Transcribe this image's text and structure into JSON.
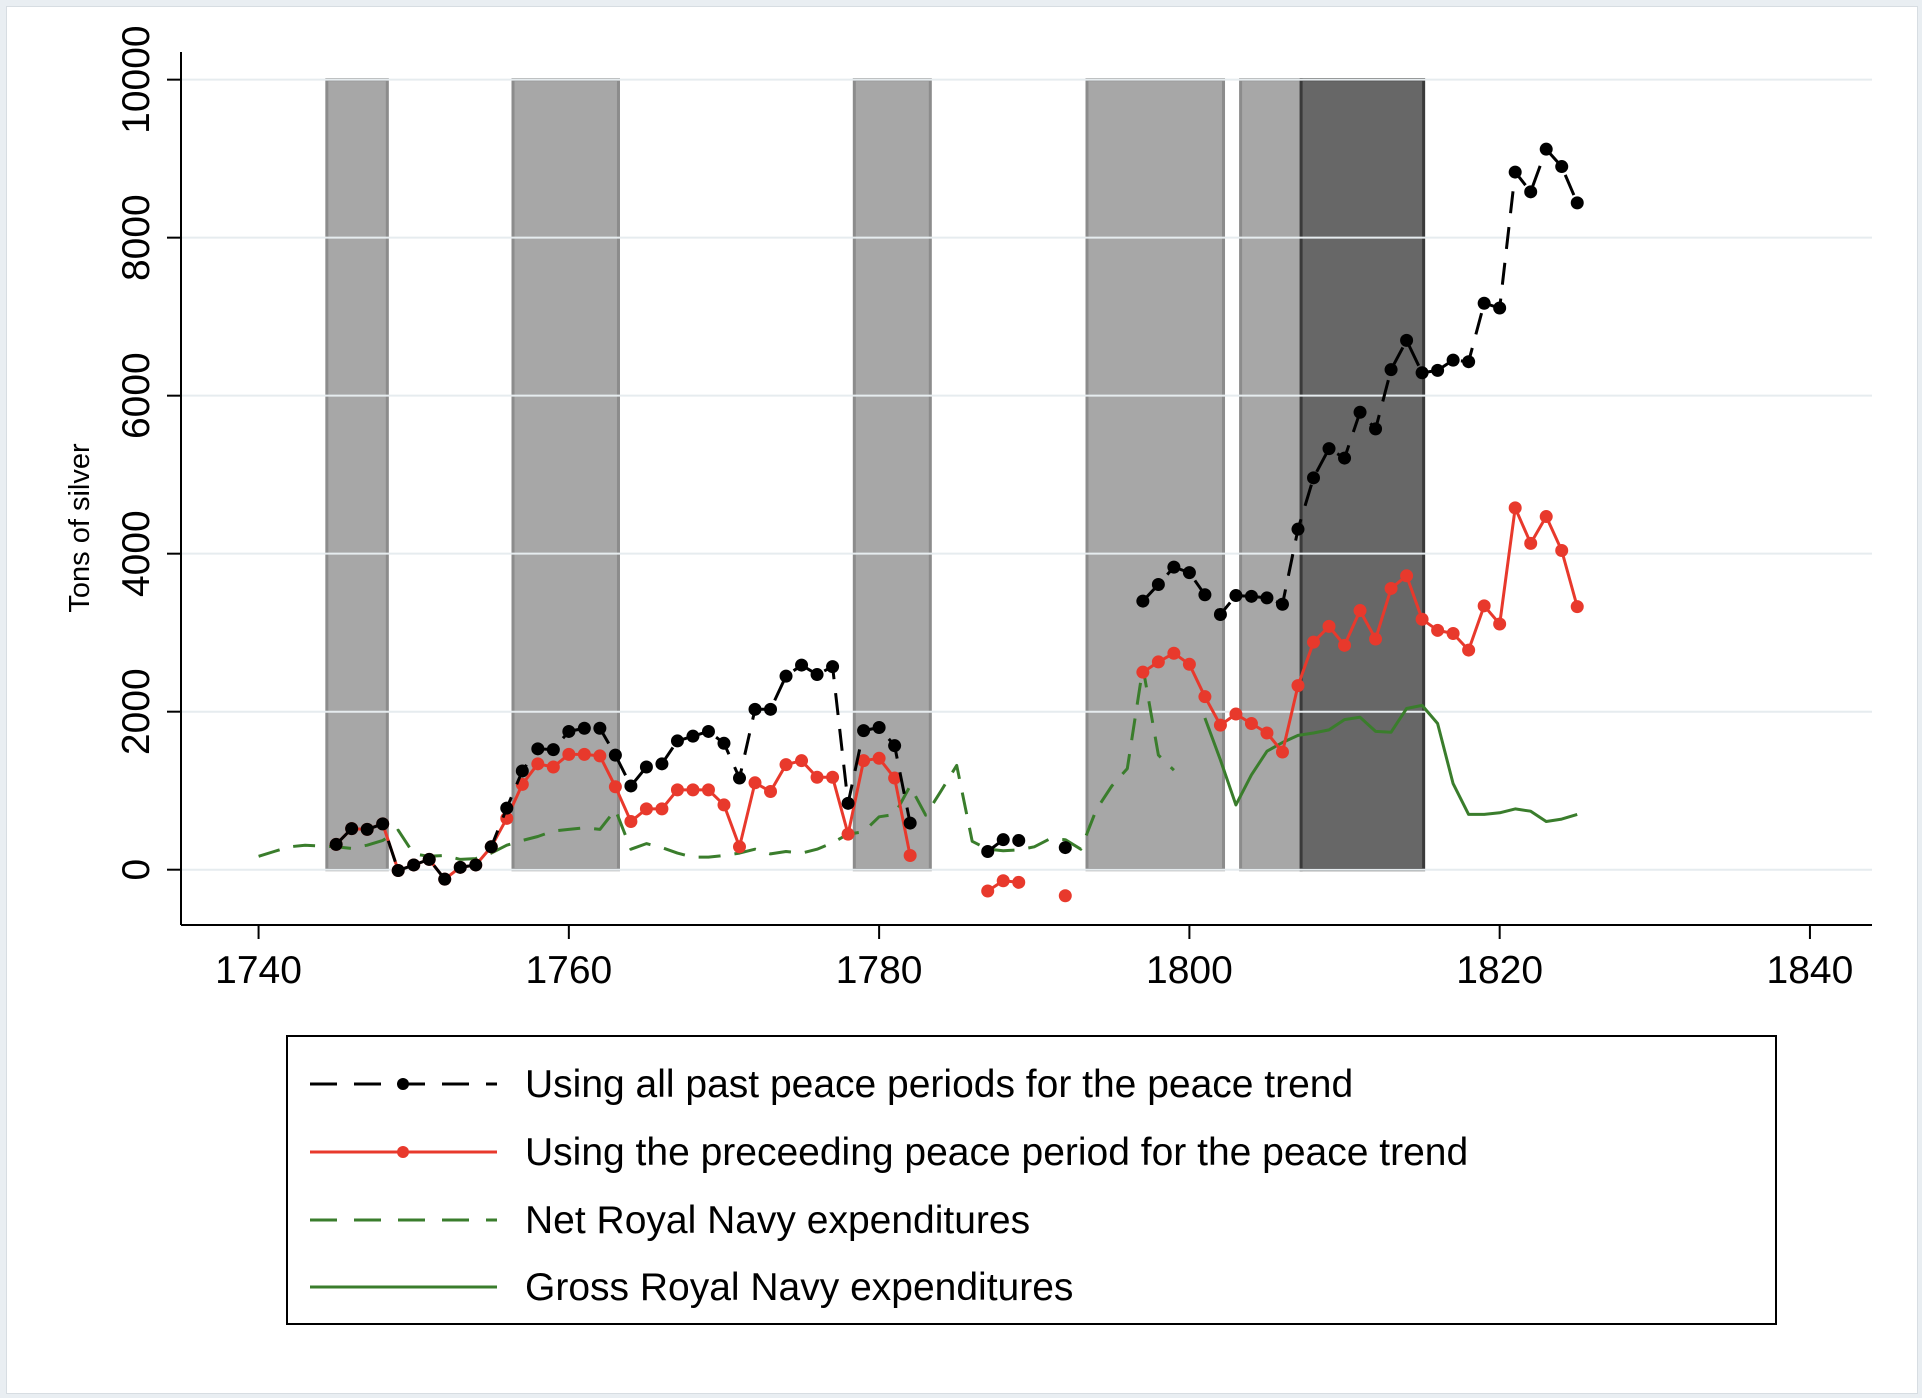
{
  "chart_data": {
    "type": "line",
    "title": "",
    "xlabel": "",
    "ylabel": "Tons of silver",
    "xlim": [
      1735,
      1844
    ],
    "ylim": [
      -700,
      10350
    ],
    "xticks": [
      "1740",
      "1760",
      "1780",
      "1800",
      "1820",
      "1840"
    ],
    "yticks": [
      "0",
      "2000",
      "4000",
      "6000",
      "8000",
      "10000"
    ],
    "grid": "horizontal",
    "legend_position": "bottom",
    "bands": [
      {
        "start": 1744.4,
        "end": 1748.3,
        "shade": "light"
      },
      {
        "start": 1756.4,
        "end": 1763.2,
        "shade": "light"
      },
      {
        "start": 1778.4,
        "end": 1783.3,
        "shade": "light"
      },
      {
        "start": 1793.4,
        "end": 1802.2,
        "shade": "light"
      },
      {
        "start": 1803.3,
        "end": 1807.2,
        "shade": "light"
      },
      {
        "start": 1807.2,
        "end": 1815.1,
        "shade": "dark"
      }
    ],
    "series": [
      {
        "name": "Using all past peace periods for the peace trend",
        "color": "#000000",
        "style": "dashed",
        "markers": true,
        "segments": [
          [
            [
              1745,
              320
            ],
            [
              1746,
              520
            ],
            [
              1747,
              510
            ],
            [
              1748,
              580
            ],
            [
              1749,
              -10
            ],
            [
              1750,
              60
            ],
            [
              1751,
              130
            ],
            [
              1752,
              -120
            ],
            [
              1753,
              30
            ],
            [
              1754,
              60
            ],
            [
              1755,
              290
            ],
            [
              1756,
              780
            ],
            [
              1757,
              1250
            ],
            [
              1758,
              1530
            ],
            [
              1759,
              1520
            ],
            [
              1760,
              1750
            ],
            [
              1761,
              1790
            ],
            [
              1762,
              1790
            ],
            [
              1763,
              1450
            ],
            [
              1764,
              1060
            ],
            [
              1765,
              1300
            ],
            [
              1766,
              1340
            ],
            [
              1767,
              1630
            ],
            [
              1768,
              1690
            ],
            [
              1769,
              1750
            ],
            [
              1770,
              1600
            ],
            [
              1771,
              1160
            ],
            [
              1772,
              2030
            ],
            [
              1773,
              2030
            ],
            [
              1774,
              2450
            ],
            [
              1775,
              2590
            ],
            [
              1776,
              2470
            ],
            [
              1777,
              2570
            ],
            [
              1778,
              840
            ],
            [
              1779,
              1760
            ],
            [
              1780,
              1800
            ],
            [
              1781,
              1570
            ],
            [
              1782,
              590
            ]
          ],
          [
            [
              1787,
              230
            ],
            [
              1788,
              380
            ],
            [
              1789,
              370
            ]
          ],
          [
            [
              1792,
              280
            ]
          ],
          [
            [
              1797,
              3400
            ],
            [
              1798,
              3610
            ],
            [
              1799,
              3830
            ],
            [
              1800,
              3760
            ],
            [
              1801,
              3480
            ],
            [
              1802,
              3230
            ],
            [
              1803,
              3470
            ],
            [
              1804,
              3460
            ],
            [
              1805,
              3440
            ],
            [
              1806,
              3360
            ],
            [
              1807,
              4310
            ],
            [
              1808,
              4960
            ],
            [
              1809,
              5330
            ],
            [
              1810,
              5210
            ],
            [
              1811,
              5790
            ],
            [
              1812,
              5580
            ],
            [
              1813,
              6330
            ],
            [
              1814,
              6700
            ],
            [
              1815,
              6290
            ],
            [
              1816,
              6320
            ],
            [
              1817,
              6450
            ],
            [
              1818,
              6430
            ],
            [
              1819,
              7170
            ],
            [
              1820,
              7110
            ],
            [
              1821,
              8830
            ],
            [
              1822,
              8580
            ],
            [
              1823,
              9120
            ],
            [
              1824,
              8900
            ],
            [
              1825,
              8440
            ]
          ]
        ]
      },
      {
        "name": "Using the preceeding peace period for the peace trend",
        "color": "#e8392c",
        "style": "solid",
        "markers": true,
        "segments": [
          [
            [
              1745,
              320
            ],
            [
              1746,
              520
            ],
            [
              1747,
              510
            ],
            [
              1748,
              580
            ],
            [
              1749,
              -10
            ],
            [
              1750,
              60
            ],
            [
              1751,
              130
            ],
            [
              1752,
              -120
            ],
            [
              1753,
              30
            ],
            [
              1754,
              60
            ],
            [
              1755,
              290
            ],
            [
              1756,
              650
            ],
            [
              1757,
              1080
            ],
            [
              1758,
              1340
            ],
            [
              1759,
              1300
            ],
            [
              1760,
              1460
            ],
            [
              1761,
              1460
            ],
            [
              1762,
              1440
            ],
            [
              1763,
              1050
            ],
            [
              1764,
              610
            ],
            [
              1765,
              770
            ],
            [
              1766,
              770
            ],
            [
              1767,
              1010
            ],
            [
              1768,
              1010
            ],
            [
              1769,
              1010
            ],
            [
              1770,
              820
            ],
            [
              1771,
              290
            ],
            [
              1772,
              1100
            ],
            [
              1773,
              990
            ],
            [
              1774,
              1330
            ],
            [
              1775,
              1380
            ],
            [
              1776,
              1170
            ],
            [
              1777,
              1170
            ],
            [
              1778,
              450
            ],
            [
              1779,
              1380
            ],
            [
              1780,
              1410
            ],
            [
              1781,
              1160
            ],
            [
              1782,
              180
            ]
          ],
          [
            [
              1787,
              -270
            ],
            [
              1788,
              -140
            ],
            [
              1789,
              -160
            ]
          ],
          [
            [
              1792,
              -330
            ]
          ],
          [
            [
              1797,
              2500
            ],
            [
              1798,
              2630
            ],
            [
              1799,
              2740
            ],
            [
              1800,
              2600
            ],
            [
              1801,
              2190
            ],
            [
              1802,
              1830
            ],
            [
              1803,
              1970
            ],
            [
              1804,
              1850
            ],
            [
              1805,
              1730
            ],
            [
              1806,
              1490
            ],
            [
              1807,
              2330
            ],
            [
              1808,
              2880
            ],
            [
              1809,
              3080
            ],
            [
              1810,
              2840
            ],
            [
              1811,
              3280
            ],
            [
              1812,
              2920
            ],
            [
              1813,
              3560
            ],
            [
              1814,
              3720
            ],
            [
              1815,
              3170
            ],
            [
              1816,
              3030
            ],
            [
              1817,
              2990
            ],
            [
              1818,
              2780
            ],
            [
              1819,
              3340
            ],
            [
              1820,
              3110
            ],
            [
              1821,
              4580
            ],
            [
              1822,
              4130
            ],
            [
              1823,
              4470
            ],
            [
              1824,
              4040
            ],
            [
              1825,
              3330
            ]
          ]
        ]
      },
      {
        "name": "Net Royal Navy expenditures",
        "color": "#3a7d2c",
        "style": "dashed",
        "markers": false,
        "segments": [
          [
            [
              1740,
              170
            ],
            [
              1741,
              230
            ],
            [
              1742,
              290
            ],
            [
              1743,
              310
            ],
            [
              1744,
              300
            ],
            [
              1745,
              290
            ],
            [
              1746,
              270
            ],
            [
              1747,
              310
            ],
            [
              1748,
              370
            ],
            [
              1749,
              500
            ],
            [
              1750,
              200
            ],
            [
              1751,
              170
            ],
            [
              1752,
              180
            ],
            [
              1753,
              130
            ],
            [
              1754,
              140
            ],
            [
              1755,
              210
            ],
            [
              1756,
              310
            ],
            [
              1757,
              370
            ],
            [
              1758,
              420
            ],
            [
              1759,
              490
            ],
            [
              1760,
              510
            ],
            [
              1761,
              530
            ],
            [
              1762,
              510
            ],
            [
              1763,
              760
            ],
            [
              1764,
              260
            ],
            [
              1765,
              330
            ],
            [
              1766,
              280
            ],
            [
              1767,
              210
            ],
            [
              1768,
              160
            ],
            [
              1769,
              160
            ],
            [
              1770,
              180
            ],
            [
              1771,
              210
            ],
            [
              1772,
              260
            ],
            [
              1773,
              200
            ],
            [
              1774,
              230
            ],
            [
              1775,
              210
            ],
            [
              1776,
              260
            ],
            [
              1777,
              340
            ],
            [
              1778,
              450
            ],
            [
              1779,
              480
            ],
            [
              1780,
              670
            ],
            [
              1781,
              700
            ],
            [
              1782,
              1060
            ],
            [
              1783,
              690
            ],
            [
              1784,
              1000
            ],
            [
              1785,
              1320
            ],
            [
              1786,
              360
            ],
            [
              1787,
              260
            ],
            [
              1788,
              240
            ],
            [
              1789,
              250
            ],
            [
              1790,
              290
            ],
            [
              1791,
              390
            ],
            [
              1792,
              380
            ],
            [
              1793,
              260
            ],
            [
              1794,
              760
            ],
            [
              1795,
              1060
            ],
            [
              1796,
              1280
            ],
            [
              1797,
              2560
            ],
            [
              1798,
              1450
            ],
            [
              1799,
              1260
            ]
          ]
        ]
      },
      {
        "name": "Gross Royal Navy expenditures",
        "color": "#3a7d2c",
        "style": "solid",
        "markers": false,
        "segments": [
          [
            [
              1801,
              1920
            ],
            [
              1802,
              1390
            ],
            [
              1803,
              820
            ],
            [
              1804,
              1200
            ],
            [
              1805,
              1500
            ],
            [
              1806,
              1610
            ],
            [
              1807,
              1700
            ],
            [
              1808,
              1730
            ],
            [
              1809,
              1770
            ],
            [
              1810,
              1900
            ],
            [
              1811,
              1930
            ],
            [
              1812,
              1750
            ],
            [
              1813,
              1740
            ],
            [
              1814,
              2040
            ],
            [
              1815,
              2080
            ],
            [
              1816,
              1850
            ],
            [
              1817,
              1090
            ],
            [
              1818,
              700
            ],
            [
              1819,
              700
            ],
            [
              1820,
              720
            ],
            [
              1821,
              770
            ],
            [
              1822,
              740
            ],
            [
              1823,
              610
            ],
            [
              1824,
              640
            ],
            [
              1825,
              700
            ]
          ]
        ]
      }
    ]
  }
}
